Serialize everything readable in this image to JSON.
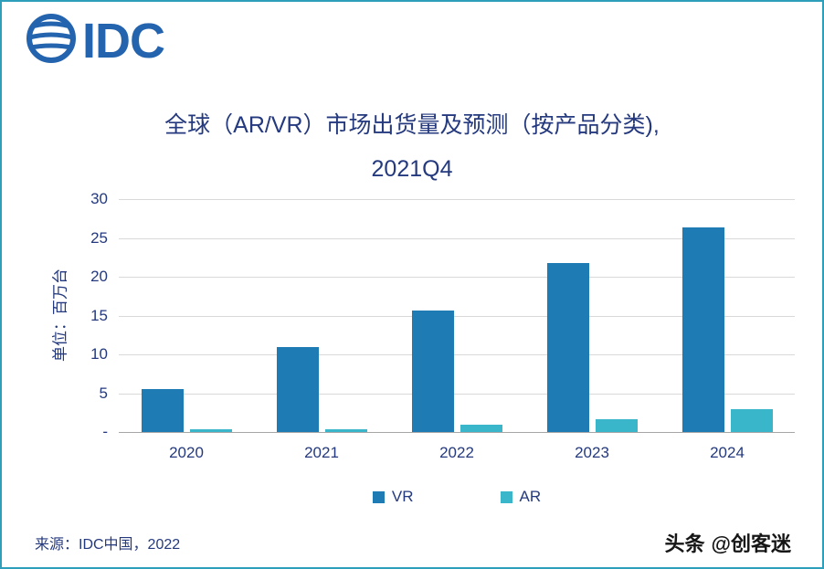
{
  "header": {
    "logo_text": "IDC"
  },
  "chart": {
    "title_line1": "全球（AR/VR）市场出货量及预测（按产品分类),",
    "title_line2": "2021Q4",
    "ylabel": "单位：百万台"
  },
  "chart_data": {
    "type": "bar",
    "title": "全球（AR/VR）市场出货量及预测（按产品分类), 2021Q4",
    "xlabel": "",
    "ylabel": "单位：百万台",
    "categories": [
      "2020",
      "2021",
      "2022",
      "2023",
      "2024"
    ],
    "series": [
      {
        "name": "VR",
        "color": "#1E7BB4",
        "values": [
          5.5,
          10.9,
          15.6,
          21.8,
          26.4
        ]
      },
      {
        "name": "AR",
        "color": "#39B6C9",
        "values": [
          0.3,
          0.3,
          0.9,
          1.6,
          2.9
        ]
      }
    ],
    "ylim": [
      0,
      30
    ],
    "yticks": [
      {
        "label": "30",
        "value": 30
      },
      {
        "label": "25",
        "value": 25
      },
      {
        "label": "20",
        "value": 20
      },
      {
        "label": "15",
        "value": 15
      },
      {
        "label": "10",
        "value": 10
      },
      {
        "label": "5",
        "value": 5
      },
      {
        "label": "-",
        "value": 0
      }
    ],
    "grid": true,
    "legend_position": "bottom"
  },
  "footer": {
    "source": "来源：IDC中国，2022",
    "watermark_brand": "头条",
    "watermark_handle": "@创客迷"
  },
  "colors": {
    "accent_navy": "#24397E",
    "vr_bar": "#1E7BB4",
    "ar_bar": "#39B6C9",
    "page_border": "#2E9FBA",
    "logo_blue": "#2463AE"
  }
}
